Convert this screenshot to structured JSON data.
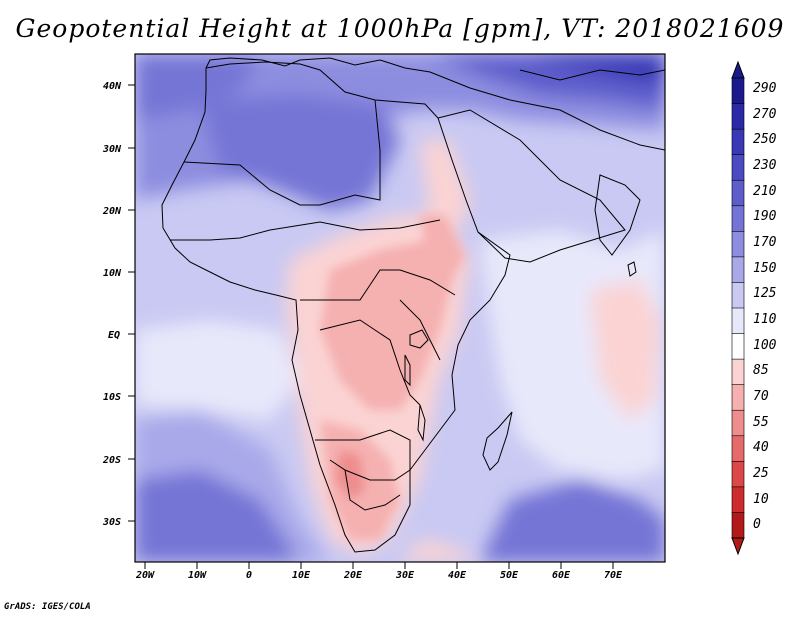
{
  "title": "Geopotential Height at 1000hPa [gpm], VT: 2018021609",
  "credit": "GrADS: IGES/COLA",
  "map": {
    "lat_labels": [
      "40N",
      "30N",
      "20N",
      "10N",
      "EQ",
      "10S",
      "20S",
      "30S"
    ],
    "lon_labels": [
      "20W",
      "10W",
      "0",
      "10E",
      "20E",
      "30E",
      "40E",
      "50E",
      "60E",
      "70E"
    ]
  },
  "colorbar": {
    "levels": [
      "290",
      "270",
      "250",
      "230",
      "210",
      "190",
      "170",
      "150",
      "125",
      "110",
      "100",
      "85",
      "70",
      "55",
      "40",
      "25",
      "10",
      "0"
    ],
    "colors": [
      "#1a1a8c",
      "#2a2aa8",
      "#3939b6",
      "#4a4ac2",
      "#5d5dcc",
      "#7474d6",
      "#8d8de0",
      "#a9a9ea",
      "#c9c9f3",
      "#e8e8fb",
      "#ffffff",
      "#fbd3d3",
      "#f5b0b0",
      "#ee8d8d",
      "#e66a6a",
      "#dc4848",
      "#cc2c2c",
      "#b21a1a"
    ]
  }
}
